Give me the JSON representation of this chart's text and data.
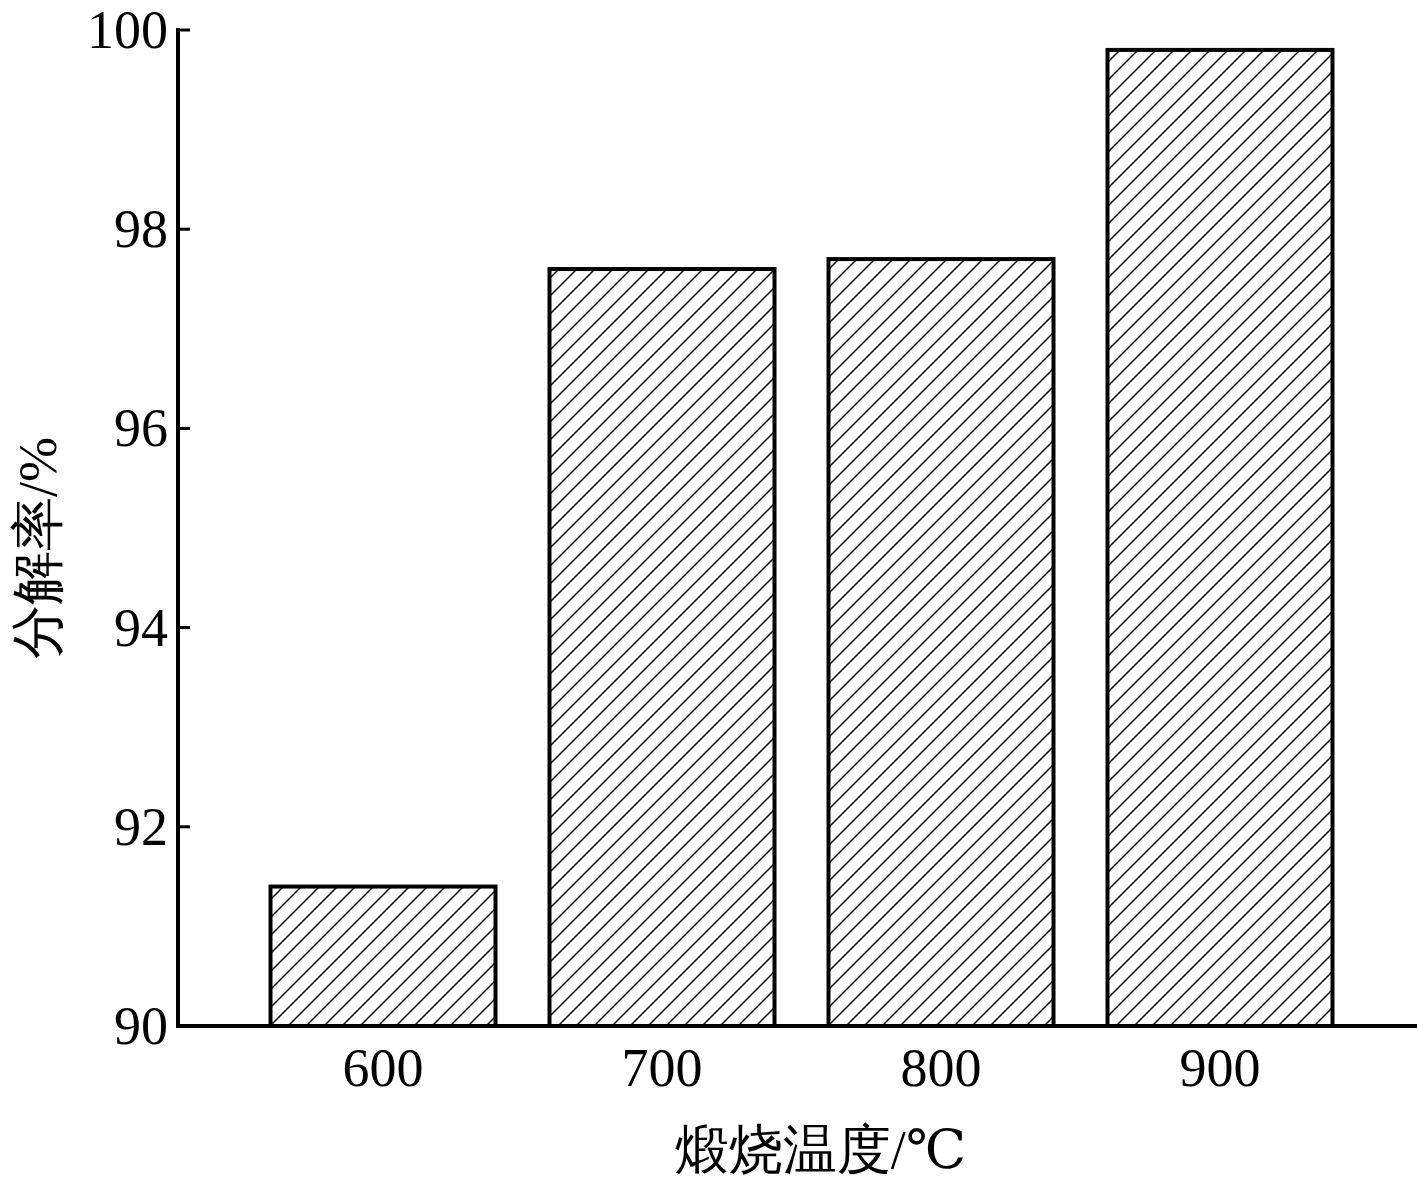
{
  "chart_data": {
    "type": "bar",
    "xlabel": "煅烧温度/℃",
    "ylabel": "分解率/%",
    "categories": [
      "600",
      "700",
      "800",
      "900"
    ],
    "values": [
      91.4,
      97.6,
      97.7,
      99.8
    ],
    "color": "#000000",
    "ylim": [
      90,
      100
    ],
    "yticks": [
      90,
      92,
      94,
      96,
      98,
      100
    ],
    "grid": false
  }
}
